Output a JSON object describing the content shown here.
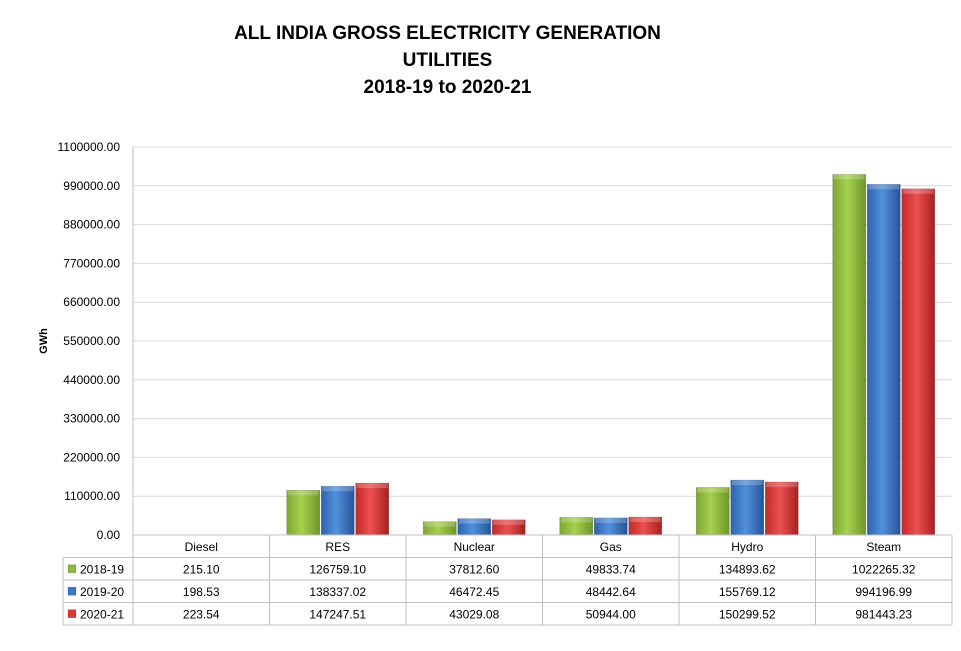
{
  "chart_data": {
    "type": "bar",
    "title_lines": [
      "ALL INDIA GROSS ELECTRICITY GENERATION",
      "UTILITIES",
      "2018-19 to 2020-21"
    ],
    "ylabel": "GWh",
    "xlabel": "",
    "ylim": [
      0,
      1100000
    ],
    "yticks": [
      0,
      110000,
      220000,
      330000,
      440000,
      550000,
      660000,
      770000,
      880000,
      990000,
      1100000
    ],
    "ytick_labels": [
      "0.00",
      "110000.00",
      "220000.00",
      "330000.00",
      "440000.00",
      "550000.00",
      "660000.00",
      "770000.00",
      "880000.00",
      "990000.00",
      "1100000.00"
    ],
    "grid": true,
    "legend": "data-table",
    "categories": [
      "Diesel",
      "RES",
      "Nuclear",
      "Gas",
      "Hydro",
      "Steam"
    ],
    "series": [
      {
        "name": "2018-19",
        "color": "#8DB83A",
        "values": [
          215.1,
          126759.1,
          37812.6,
          49833.74,
          134893.62,
          1022265.32
        ],
        "labels": [
          "215.10",
          "126759.10",
          "37812.60",
          "49833.74",
          "134893.62",
          "1022265.32"
        ]
      },
      {
        "name": "2019-20",
        "color": "#3C76C4",
        "values": [
          198.53,
          138337.02,
          46472.45,
          48442.64,
          155769.12,
          994196.99
        ],
        "labels": [
          "198.53",
          "138337.02",
          "46472.45",
          "48442.64",
          "155769.12",
          "994196.99"
        ]
      },
      {
        "name": "2020-21",
        "color": "#D63A3A",
        "values": [
          223.54,
          147247.51,
          43029.08,
          50944.0,
          150299.52,
          981443.23
        ],
        "labels": [
          "223.54",
          "147247.51",
          "43029.08",
          "50944.00",
          "150299.52",
          "981443.23"
        ]
      }
    ]
  }
}
